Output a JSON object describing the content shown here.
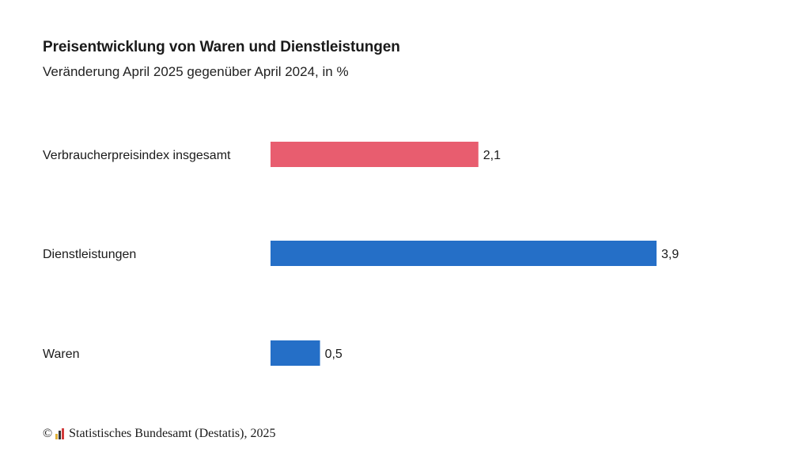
{
  "header": {
    "title": "Preisentwicklung von Waren und Dienstleistungen",
    "subtitle": "Veränderung April 2025 gegenüber April 2024, in %"
  },
  "chart_data": {
    "type": "bar",
    "orientation": "horizontal",
    "title": "Preisentwicklung von Waren und Dienstleistungen",
    "subtitle": "Veränderung April 2025 gegenüber April 2024, in %",
    "categories": [
      "Verbraucherpreisindex insgesamt",
      "Dienstleistungen",
      "Waren"
    ],
    "values": [
      2.1,
      3.9,
      0.5
    ],
    "value_labels": [
      "2,1",
      "3,9",
      "0,5"
    ],
    "bar_colors": [
      "#e85d6f",
      "#256fc7",
      "#256fc7"
    ],
    "xlim": [
      0,
      3.9
    ],
    "grid": false,
    "xlabel": "",
    "ylabel": ""
  },
  "footer": {
    "source": "Statistisches Bundesamt (Destatis), 2025",
    "copyright_symbol": "©",
    "logo_icon": "destatis-logo-icon"
  },
  "colors": {
    "logo_bars": [
      "#e0b13a",
      "#333333",
      "#d23c3c"
    ]
  }
}
